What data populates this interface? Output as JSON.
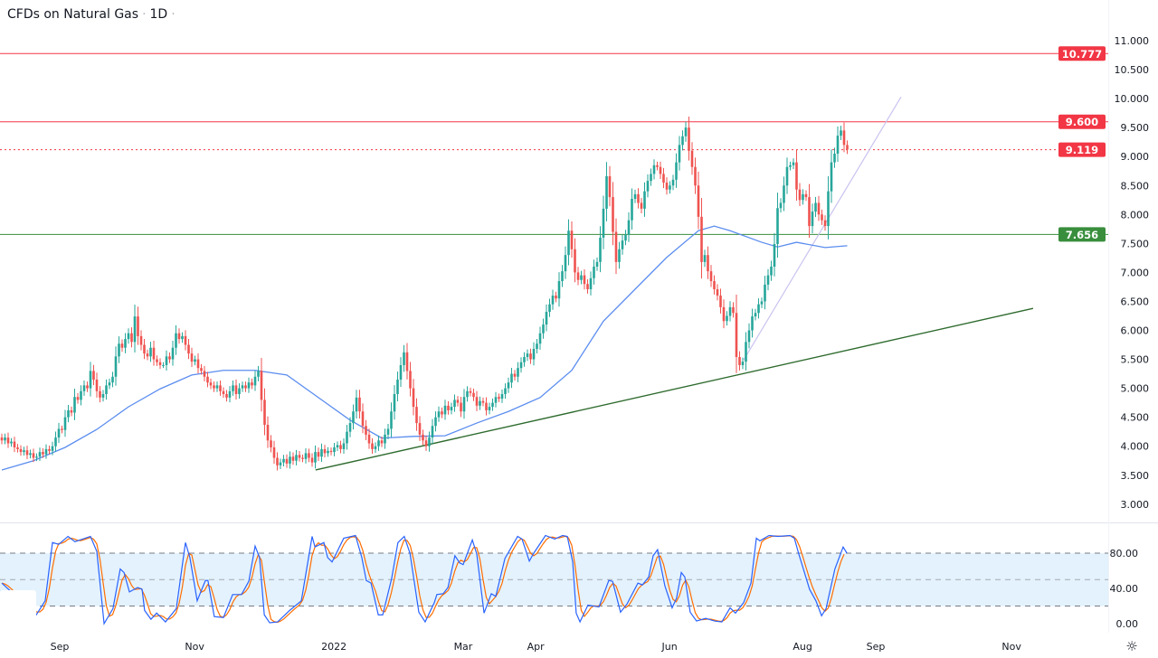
{
  "header": {
    "symbol_title": "CFDs on Natural Gas",
    "interval": "1D",
    "separator": "·"
  },
  "colors": {
    "up": "#26a69a",
    "down": "#ef5350",
    "ma": "#5b8def",
    "stoch_k": "#2962ff",
    "stoch_d": "#ff6d00",
    "resistance": "#f23645",
    "support": "#388e3c",
    "trend_support": "#2e6b2e",
    "trend_steep": "#c9c3ef",
    "stoch_band": "#e3f2fd"
  },
  "chart_data": [
    {
      "type": "candlestick",
      "title": "CFDs on Natural Gas · 1D",
      "ylim": [
        2.8,
        11.25
      ],
      "y_ticks": [
        "11.000",
        "10.500",
        "10.000",
        "9.500",
        "9.000",
        "8.500",
        "8.000",
        "7.500",
        "7.000",
        "6.500",
        "6.000",
        "5.500",
        "5.000",
        "4.500",
        "4.000",
        "3.500",
        "3.000"
      ],
      "x_ticks": [
        {
          "label": "Sep",
          "bar": 18.3
        },
        {
          "label": "Nov",
          "bar": 60.9
        },
        {
          "label": "2022",
          "bar": 104.9
        },
        {
          "label": "Mar",
          "bar": 145.7
        },
        {
          "label": "Apr",
          "bar": 168.6
        },
        {
          "label": "Jun",
          "bar": 210.9
        },
        {
          "label": "Aug",
          "bar": 252.9
        },
        {
          "label": "Sep",
          "bar": 276
        },
        {
          "label": "Nov",
          "bar": 318.9
        }
      ],
      "first_open": 4.15,
      "close": [
        4.1,
        4.15,
        4.05,
        4.08,
        3.98,
        3.95,
        3.9,
        3.93,
        3.85,
        3.88,
        3.8,
        3.82,
        3.9,
        3.86,
        3.95,
        3.92,
        4.0,
        4.15,
        4.3,
        4.28,
        4.5,
        4.62,
        4.58,
        4.85,
        4.8,
        4.95,
        5.05,
        5.0,
        5.3,
        5.15,
        4.95,
        4.84,
        4.9,
        5.05,
        5.1,
        5.2,
        5.55,
        5.77,
        5.7,
        5.85,
        5.95,
        5.8,
        6.24,
        5.9,
        5.75,
        5.6,
        5.55,
        5.7,
        5.5,
        5.45,
        5.4,
        5.4,
        5.55,
        5.5,
        5.7,
        5.95,
        5.85,
        5.9,
        5.75,
        5.6,
        5.46,
        5.5,
        5.35,
        5.3,
        5.2,
        5.1,
        5.05,
        5.0,
        5.05,
        4.95,
        4.9,
        4.84,
        4.95,
        5.05,
        4.9,
        5.0,
        5.05,
        5.0,
        5.1,
        5.05,
        5.2,
        5.3,
        4.8,
        4.37,
        4.1,
        3.98,
        3.8,
        3.67,
        3.72,
        3.78,
        3.7,
        3.82,
        3.75,
        3.85,
        3.8,
        3.78,
        3.88,
        3.8,
        3.72,
        3.9,
        3.82,
        3.95,
        3.88,
        3.92,
        3.9,
        3.98,
        4.02,
        3.95,
        4.05,
        4.25,
        4.4,
        4.6,
        4.84,
        4.6,
        4.35,
        4.2,
        4.05,
        3.95,
        4.0,
        4.1,
        4.05,
        4.2,
        4.3,
        4.6,
        4.9,
        5.15,
        5.4,
        5.62,
        5.3,
        5.0,
        4.68,
        4.4,
        4.2,
        4.1,
        4.0,
        4.15,
        4.35,
        4.5,
        4.6,
        4.55,
        4.7,
        4.62,
        4.68,
        4.8,
        4.75,
        4.6,
        4.85,
        4.95,
        4.92,
        4.85,
        4.7,
        4.78,
        4.75,
        4.62,
        4.68,
        4.75,
        4.85,
        4.82,
        4.9,
        5.0,
        5.1,
        5.25,
        5.2,
        5.35,
        5.45,
        5.54,
        5.6,
        5.5,
        5.68,
        5.77,
        5.95,
        6.1,
        6.32,
        6.45,
        6.6,
        6.55,
        6.85,
        7.02,
        7.3,
        7.72,
        7.4,
        7.0,
        6.87,
        6.95,
        6.8,
        6.71,
        6.9,
        7.1,
        7.18,
        7.6,
        8.1,
        8.66,
        8.3,
        7.7,
        7.18,
        7.4,
        7.55,
        7.65,
        7.9,
        8.27,
        8.35,
        8.2,
        8.1,
        8.4,
        8.58,
        8.7,
        8.85,
        8.82,
        8.7,
        8.55,
        8.43,
        8.5,
        8.6,
        8.9,
        9.2,
        9.35,
        9.5,
        9.1,
        8.82,
        8.5,
        7.96,
        7.18,
        7.3,
        7.02,
        6.85,
        6.71,
        6.6,
        6.4,
        6.16,
        6.25,
        6.4,
        6.3,
        5.54,
        5.4,
        5.46,
        5.8,
        6.0,
        6.24,
        6.3,
        6.45,
        6.5,
        6.79,
        6.95,
        7.1,
        7.49,
        8.11,
        8.2,
        8.5,
        8.82,
        8.85,
        8.9,
        8.43,
        8.25,
        8.35,
        8.3,
        7.8,
        8.05,
        8.2,
        8.0,
        7.9,
        7.8,
        8.4,
        8.9,
        9.05,
        9.36,
        9.45,
        9.2,
        9.119
      ],
      "moving_average": [
        [
          0,
          3.59
        ],
        [
          10,
          3.75
        ],
        [
          20,
          3.98
        ],
        [
          30,
          4.29
        ],
        [
          40,
          4.68
        ],
        [
          50,
          4.99
        ],
        [
          60,
          5.23
        ],
        [
          70,
          5.31
        ],
        [
          80,
          5.31
        ],
        [
          90,
          5.23
        ],
        [
          100,
          4.84
        ],
        [
          110,
          4.45
        ],
        [
          120,
          4.14
        ],
        [
          130,
          4.17
        ],
        [
          140,
          4.18
        ],
        [
          150,
          4.4
        ],
        [
          160,
          4.6
        ],
        [
          170,
          4.84
        ],
        [
          180,
          5.31
        ],
        [
          190,
          6.16
        ],
        [
          200,
          6.71
        ],
        [
          210,
          7.26
        ],
        [
          220,
          7.72
        ],
        [
          225,
          7.8
        ],
        [
          230,
          7.72
        ],
        [
          240,
          7.52
        ],
        [
          245,
          7.44
        ],
        [
          251,
          7.52
        ],
        [
          260,
          7.43
        ],
        [
          267,
          7.46
        ]
      ],
      "horizontal_levels": [
        {
          "label": "10.777",
          "value": 10.777,
          "style": "solid",
          "color": "resistance"
        },
        {
          "label": "9.600",
          "value": 9.6,
          "style": "solid",
          "color": "resistance"
        },
        {
          "label": "9.119",
          "value": 9.119,
          "style": "dotted",
          "color": "resistance"
        },
        {
          "label": "7.656",
          "value": 7.656,
          "style": "solid",
          "color": "support"
        }
      ],
      "trendlines": [
        {
          "from": [
            99.1,
            3.59
          ],
          "to": [
            325.7,
            6.38
          ],
          "color": "trend_support"
        },
        {
          "from": [
            234.3,
            5.49
          ],
          "to": [
            284,
            10.03
          ],
          "color": "trend_steep"
        }
      ]
    },
    {
      "type": "line",
      "indicator": "stochastic",
      "ylim": [
        0,
        100
      ],
      "y_ticks": [
        "80.00",
        "40.00",
        "0.00"
      ],
      "levels": [
        80,
        50,
        20
      ],
      "band": [
        20,
        80
      ],
      "k": [
        [
          0,
          46
        ],
        [
          10.9,
          10
        ],
        [
          13.7,
          26
        ],
        [
          16,
          92
        ],
        [
          18,
          90
        ],
        [
          20.9,
          99
        ],
        [
          23.1,
          93
        ],
        [
          28,
          99
        ],
        [
          30,
          82
        ],
        [
          32.3,
          0
        ],
        [
          35.1,
          17
        ],
        [
          37.4,
          62
        ],
        [
          38.6,
          58
        ],
        [
          40.3,
          36
        ],
        [
          42.9,
          41
        ],
        [
          44.3,
          39
        ],
        [
          45.1,
          15
        ],
        [
          47.1,
          5
        ],
        [
          48.9,
          12
        ],
        [
          51.7,
          2
        ],
        [
          55.1,
          17
        ],
        [
          58,
          92
        ],
        [
          59.4,
          75
        ],
        [
          61.7,
          26
        ],
        [
          64.3,
          49
        ],
        [
          65.1,
          49
        ],
        [
          67.1,
          8
        ],
        [
          70,
          7
        ],
        [
          72.9,
          33
        ],
        [
          75.7,
          33
        ],
        [
          78,
          48
        ],
        [
          80,
          88
        ],
        [
          81.4,
          75
        ],
        [
          82.9,
          10
        ],
        [
          84.6,
          1
        ],
        [
          87.1,
          2
        ],
        [
          90.9,
          15
        ],
        [
          94.6,
          26
        ],
        [
          98,
          99
        ],
        [
          98.9,
          87
        ],
        [
          101.7,
          92
        ],
        [
          102.9,
          75
        ],
        [
          104.3,
          70
        ],
        [
          108,
          97
        ],
        [
          111.7,
          100
        ],
        [
          113.7,
          75
        ],
        [
          115.1,
          49
        ],
        [
          116.6,
          46
        ],
        [
          118.9,
          10
        ],
        [
          120.3,
          10
        ],
        [
          123.1,
          51
        ],
        [
          125.1,
          92
        ],
        [
          127.1,
          99
        ],
        [
          128.9,
          80
        ],
        [
          131.7,
          13
        ],
        [
          133.7,
          2
        ],
        [
          136.6,
          24
        ],
        [
          137.4,
          33
        ],
        [
          139.4,
          34
        ],
        [
          140.9,
          41
        ],
        [
          143.1,
          77
        ],
        [
          144.6,
          69
        ],
        [
          145.7,
          67
        ],
        [
          148.6,
          95
        ],
        [
          150,
          79
        ],
        [
          152.3,
          12
        ],
        [
          154.6,
          34
        ],
        [
          156,
          31
        ],
        [
          158.9,
          74
        ],
        [
          162.9,
          99
        ],
        [
          164.3,
          96
        ],
        [
          166.6,
          71
        ],
        [
          168,
          80
        ],
        [
          171.7,
          100
        ],
        [
          174.6,
          96
        ],
        [
          177.1,
          100
        ],
        [
          178.6,
          99
        ],
        [
          180.3,
          70
        ],
        [
          181.4,
          12
        ],
        [
          182.6,
          2
        ],
        [
          185.1,
          21
        ],
        [
          188.6,
          19
        ],
        [
          191.7,
          49
        ],
        [
          192.9,
          48
        ],
        [
          195.4,
          13
        ],
        [
          197.4,
          22
        ],
        [
          200.9,
          46
        ],
        [
          202.3,
          44
        ],
        [
          204.3,
          53
        ],
        [
          205.7,
          77
        ],
        [
          207.1,
          84
        ],
        [
          209.4,
          43
        ],
        [
          211.7,
          18
        ],
        [
          213.1,
          29
        ],
        [
          214.6,
          58
        ],
        [
          215.7,
          53
        ],
        [
          217.4,
          13
        ],
        [
          219.4,
          3
        ],
        [
          222.3,
          6
        ],
        [
          225.1,
          3
        ],
        [
          227.4,
          2
        ],
        [
          230,
          18
        ],
        [
          231.7,
          12
        ],
        [
          234.3,
          24
        ],
        [
          236.6,
          46
        ],
        [
          238.3,
          97
        ],
        [
          239.4,
          94
        ],
        [
          242.3,
          100
        ],
        [
          245.1,
          99
        ],
        [
          248.9,
          100
        ],
        [
          250.3,
          97
        ],
        [
          251.7,
          79
        ],
        [
          255.1,
          39
        ],
        [
          257.1,
          26
        ],
        [
          258.9,
          9
        ],
        [
          260.3,
          17
        ],
        [
          263.1,
          62
        ],
        [
          265.7,
          87
        ],
        [
          266.9,
          80
        ]
      ],
      "d_period": 3
    }
  ]
}
